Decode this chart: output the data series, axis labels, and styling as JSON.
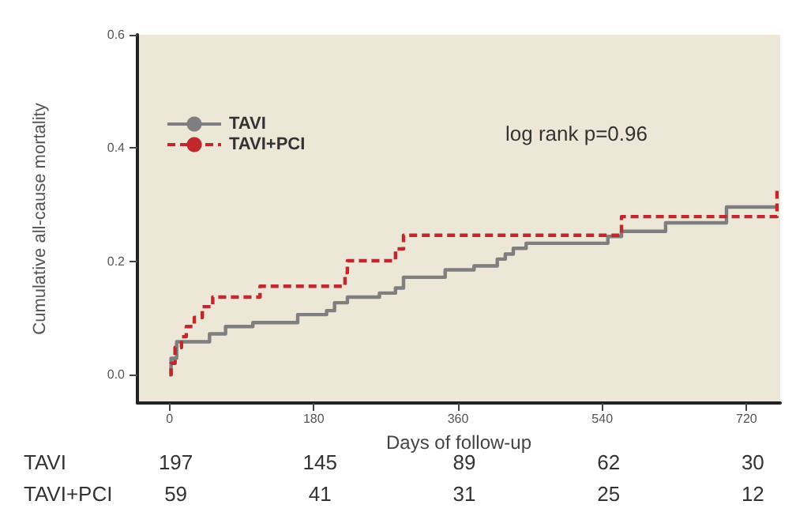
{
  "chart_data": {
    "type": "step",
    "xlabel": "Days of follow-up",
    "ylabel": "Cumulative all-cause mortality",
    "xlim": [
      -40,
      762
    ],
    "xticks": [
      0,
      180,
      360,
      540,
      720
    ],
    "ylim": [
      -0.05,
      0.6
    ],
    "yticks": [
      {
        "value": 0,
        "label": "0.0"
      },
      {
        "value": 0.2,
        "label": "0.2"
      },
      {
        "value": 0.4,
        "label": "0.4"
      },
      {
        "value": 0.6,
        "label": "0.6"
      }
    ],
    "series": [
      {
        "name": "TAVI",
        "color": "#7f7f7f",
        "line_style": "solid",
        "x": [
          0,
          2,
          9,
          30,
          50,
          70,
          104,
          160,
          196,
          206,
          222,
          262,
          282,
          292,
          344,
          380,
          409,
          419,
          429,
          445,
          547,
          564,
          619,
          695,
          760
        ],
        "values": [
          0,
          0.029,
          0.058,
          0.058,
          0.072,
          0.085,
          0.092,
          0.106,
          0.113,
          0.127,
          0.137,
          0.144,
          0.153,
          0.172,
          0.185,
          0.192,
          0.204,
          0.213,
          0.223,
          0.232,
          0.244,
          0.253,
          0.268,
          0.296,
          0.296
        ]
      },
      {
        "name": "TAVI+PCI",
        "color": "#c0282d",
        "line_style": "dashed",
        "x": [
          0,
          2,
          7,
          15,
          21,
          31,
          41,
          54,
          113,
          219,
          222,
          282,
          292,
          564,
          758
        ],
        "values": [
          0,
          0.02,
          0.048,
          0.067,
          0.085,
          0.101,
          0.12,
          0.137,
          0.156,
          0.18,
          0.201,
          0.222,
          0.246,
          0.279,
          0.33
        ]
      }
    ],
    "legend": "top left",
    "grid": false,
    "marker": "none",
    "annotations": [
      "log rank p=0.96",
      "TAVI",
      "197",
      "145",
      "89",
      "62",
      "30",
      "TAVI+PCI",
      "59",
      "41",
      "31",
      "25",
      "12"
    ]
  }
}
